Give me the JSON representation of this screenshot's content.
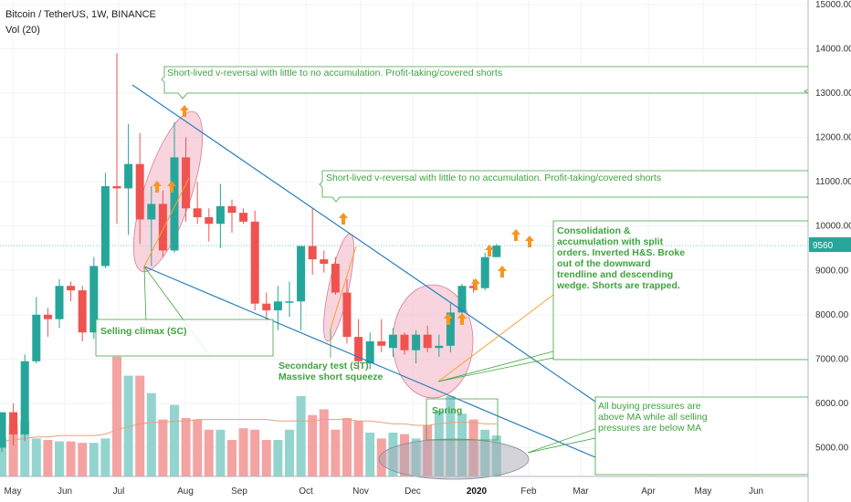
{
  "header": {
    "symbol": "Bitcoin / TetherUS, 1W, BINANCE",
    "volume_indicator": "Vol (20)"
  },
  "colors": {
    "up": "#26a69a",
    "down": "#ef5350",
    "vol_up": "#94d4cf",
    "vol_down": "#f4a3a3",
    "annotation": "#3fa33f",
    "trendline": "#2a7fbf",
    "price_tag": "#26a69a"
  },
  "chart_data": {
    "type": "candlestick",
    "y_axis_ticks": [
      "15000.00",
      "14000.00",
      "13000.00",
      "12000.00",
      "11000.00",
      "10000.00",
      "9000.00",
      "8000.00",
      "7000.00",
      "6000.00",
      "5000.00"
    ],
    "x_axis_ticks": [
      "May",
      "Jun",
      "Jul",
      "Aug",
      "Sep",
      "Oct",
      "Nov",
      "Dec",
      "2020",
      "Feb",
      "Mar",
      "Apr",
      "May",
      "Jun"
    ],
    "ylim": [
      4300,
      15000
    ],
    "last_price": "9560",
    "candles": [
      {
        "o": 5000,
        "h": 5800,
        "l": 4900,
        "c": 5800
      },
      {
        "o": 5800,
        "h": 6000,
        "l": 5050,
        "c": 5300
      },
      {
        "o": 5300,
        "h": 7100,
        "l": 5150,
        "c": 6950
      },
      {
        "o": 6950,
        "h": 8400,
        "l": 6900,
        "c": 8000
      },
      {
        "o": 8000,
        "h": 8150,
        "l": 7500,
        "c": 7900
      },
      {
        "o": 7900,
        "h": 8800,
        "l": 7700,
        "c": 8650
      },
      {
        "o": 8650,
        "h": 8750,
        "l": 8300,
        "c": 8550
      },
      {
        "o": 8550,
        "h": 8650,
        "l": 7400,
        "c": 7600
      },
      {
        "o": 7600,
        "h": 9300,
        "l": 7450,
        "c": 9100
      },
      {
        "o": 9100,
        "h": 11200,
        "l": 9050,
        "c": 10900
      },
      {
        "o": 10900,
        "h": 13900,
        "l": 10050,
        "c": 10850
      },
      {
        "o": 10850,
        "h": 12300,
        "l": 9800,
        "c": 11400
      },
      {
        "o": 11400,
        "h": 12100,
        "l": 9600,
        "c": 10150
      },
      {
        "o": 10150,
        "h": 10900,
        "l": 9100,
        "c": 10500
      },
      {
        "o": 10500,
        "h": 10800,
        "l": 9300,
        "c": 9450
      },
      {
        "o": 9450,
        "h": 12350,
        "l": 9400,
        "c": 11550
      },
      {
        "o": 11550,
        "h": 12000,
        "l": 10100,
        "c": 10400
      },
      {
        "o": 10400,
        "h": 11000,
        "l": 10050,
        "c": 10200
      },
      {
        "o": 10200,
        "h": 10400,
        "l": 9650,
        "c": 10050
      },
      {
        "o": 10050,
        "h": 10950,
        "l": 9500,
        "c": 10450
      },
      {
        "o": 10450,
        "h": 10600,
        "l": 9850,
        "c": 10300
      },
      {
        "o": 10300,
        "h": 10400,
        "l": 10050,
        "c": 10100
      },
      {
        "o": 10100,
        "h": 10350,
        "l": 8100,
        "c": 8250
      },
      {
        "o": 8250,
        "h": 8500,
        "l": 7800,
        "c": 8100
      },
      {
        "o": 8100,
        "h": 8650,
        "l": 7650,
        "c": 8300
      },
      {
        "o": 8300,
        "h": 8750,
        "l": 7950,
        "c": 8300
      },
      {
        "o": 8300,
        "h": 9500,
        "l": 7650,
        "c": 9550
      },
      {
        "o": 9550,
        "h": 10400,
        "l": 8900,
        "c": 9250
      },
      {
        "o": 9250,
        "h": 9450,
        "l": 8950,
        "c": 9150
      },
      {
        "o": 9150,
        "h": 9300,
        "l": 8450,
        "c": 8500
      },
      {
        "o": 8500,
        "h": 8800,
        "l": 7350,
        "c": 7500
      },
      {
        "o": 7500,
        "h": 7900,
        "l": 6750,
        "c": 6950
      },
      {
        "o": 6900,
        "h": 7600,
        "l": 6800,
        "c": 7400
      },
      {
        "o": 7400,
        "h": 7900,
        "l": 7150,
        "c": 7300
      },
      {
        "o": 7250,
        "h": 7700,
        "l": 7050,
        "c": 7550
      },
      {
        "o": 7550,
        "h": 7600,
        "l": 7100,
        "c": 7200
      },
      {
        "o": 7200,
        "h": 7650,
        "l": 6900,
        "c": 7550
      },
      {
        "o": 7550,
        "h": 7750,
        "l": 7150,
        "c": 7250
      },
      {
        "o": 7250,
        "h": 7550,
        "l": 7050,
        "c": 7300
      },
      {
        "o": 7300,
        "h": 8250,
        "l": 7150,
        "c": 8050
      },
      {
        "o": 8050,
        "h": 8700,
        "l": 8000,
        "c": 8650
      },
      {
        "o": 8650,
        "h": 8800,
        "l": 8500,
        "c": 8600
      },
      {
        "o": 8600,
        "h": 9400,
        "l": 8550,
        "c": 9300
      },
      {
        "o": 9300,
        "h": 9600,
        "l": 9300,
        "c": 9560
      }
    ],
    "volumes": [
      2.6,
      3.5,
      3.8,
      2.6,
      2.5,
      2.4,
      2.4,
      2.3,
      2.3,
      2.6,
      8.2,
      6.9,
      6.9,
      5.7,
      3.9,
      4.9,
      4.0,
      3.9,
      3.2,
      3.2,
      2.5,
      3.3,
      3.2,
      2.5,
      2.5,
      3.2,
      5.5,
      4.2,
      4.6,
      3.2,
      4.0,
      3.8,
      3.0,
      2.6,
      3.0,
      2.9,
      2.6,
      3.5,
      4.5,
      5.5,
      4.3,
      3.9,
      3.2,
      2.8
    ],
    "volume_ma": [
      2.4,
      2.5,
      2.6,
      2.7,
      2.7,
      2.8,
      2.8,
      2.8,
      2.8,
      2.9,
      3.2,
      3.4,
      3.6,
      3.7,
      3.7,
      3.8,
      3.8,
      3.9,
      3.9,
      3.9,
      3.9,
      3.9,
      3.9,
      3.9,
      3.8,
      3.8,
      3.8,
      3.8,
      3.9,
      3.9,
      3.9,
      3.8,
      3.8,
      3.7,
      3.6,
      3.6,
      3.5,
      3.5,
      3.6,
      3.7,
      3.7,
      3.7,
      3.6,
      3.6
    ],
    "annotations": [
      {
        "text": "Short-lived v-reversal with little to no accumulation.  Profit-taking/covered shorts"
      },
      {
        "text": "Short-lived v-reversal with little to no accumulation.  Profit-taking/covered shorts"
      },
      {
        "lines": [
          "Consolidation &",
          "accumulation with split",
          "orders.  Inverted H&S.  Broke",
          "out of the downward",
          "trendline and descending",
          "wedge.  Shorts are trapped."
        ]
      },
      {
        "text": "Selling climax (SC)"
      },
      {
        "lines": [
          "Secondary test (ST).",
          "Massive short squeeze"
        ]
      },
      {
        "text": "Spring"
      },
      {
        "lines": [
          "All buying pressures are",
          "above MA while all selling",
          "pressures are below MA"
        ]
      }
    ]
  }
}
